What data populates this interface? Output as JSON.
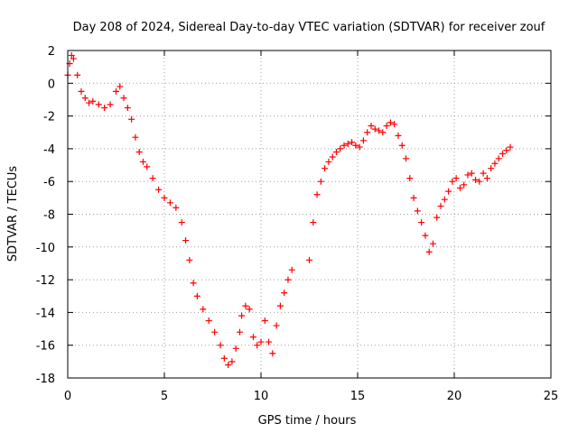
{
  "chart_data": {
    "type": "scatter",
    "title": "Day 208 of 2024, Sidereal Day-to-day VTEC variation (SDTVAR) for receiver zouf",
    "xlabel": "GPS time / hours",
    "ylabel": "SDTVAR / TECUs",
    "xlim": [
      0,
      25
    ],
    "ylim": [
      -18,
      2
    ],
    "xticks": [
      0,
      5,
      10,
      15,
      20,
      25
    ],
    "yticks": [
      2,
      0,
      -2,
      -4,
      -6,
      -8,
      -10,
      -12,
      -14,
      -16,
      -18
    ],
    "grid": true,
    "marker": "+",
    "color": "#ff0000",
    "series": [
      {
        "name": "SDTVAR",
        "x": [
          0.0,
          0.1,
          0.2,
          0.3,
          0.5,
          0.7,
          0.9,
          1.1,
          1.3,
          1.6,
          1.9,
          2.2,
          2.5,
          2.7,
          2.9,
          3.1,
          3.3,
          3.5,
          3.7,
          3.9,
          4.1,
          4.4,
          4.7,
          5.0,
          5.3,
          5.6,
          5.9,
          6.1,
          6.3,
          6.5,
          6.7,
          7.0,
          7.3,
          7.6,
          7.9,
          8.1,
          8.3,
          8.5,
          8.7,
          8.9,
          9.0,
          9.2,
          9.4,
          9.6,
          9.8,
          10.0,
          10.2,
          10.4,
          10.6,
          10.8,
          11.0,
          11.2,
          11.4,
          11.6,
          12.5,
          12.7,
          12.9,
          13.1,
          13.3,
          13.5,
          13.7,
          13.9,
          14.1,
          14.3,
          14.5,
          14.7,
          14.9,
          15.1,
          15.3,
          15.5,
          15.7,
          15.9,
          16.1,
          16.3,
          16.5,
          16.7,
          16.9,
          17.1,
          17.3,
          17.5,
          17.7,
          17.9,
          18.1,
          18.3,
          18.5,
          18.7,
          18.9,
          19.1,
          19.3,
          19.5,
          19.7,
          19.9,
          20.1,
          20.3,
          20.5,
          20.7,
          20.9,
          21.1,
          21.3,
          21.5,
          21.7,
          21.9,
          22.1,
          22.3,
          22.5,
          22.7,
          22.9
        ],
        "y": [
          0.5,
          1.2,
          1.7,
          1.5,
          0.5,
          -0.5,
          -0.9,
          -1.2,
          -1.1,
          -1.3,
          -1.5,
          -1.3,
          -0.5,
          -0.2,
          -0.9,
          -1.5,
          -2.2,
          -3.3,
          -4.2,
          -4.8,
          -5.1,
          -5.8,
          -6.5,
          -7.0,
          -7.3,
          -7.6,
          -8.5,
          -9.6,
          -10.8,
          -12.2,
          -13.0,
          -13.8,
          -14.5,
          -15.2,
          -16.0,
          -16.8,
          -17.2,
          -17.0,
          -16.2,
          -15.2,
          -14.2,
          -13.6,
          -13.8,
          -15.5,
          -16.0,
          -15.8,
          -14.5,
          -15.8,
          -16.5,
          -14.8,
          -13.6,
          -12.8,
          -12.0,
          -11.4,
          -10.8,
          -8.5,
          -6.8,
          -6.0,
          -5.2,
          -4.8,
          -4.5,
          -4.2,
          -4.0,
          -3.8,
          -3.7,
          -3.6,
          -3.8,
          -3.9,
          -3.5,
          -3.0,
          -2.6,
          -2.8,
          -2.9,
          -3.0,
          -2.6,
          -2.4,
          -2.5,
          -3.2,
          -3.8,
          -4.6,
          -5.8,
          -7.0,
          -7.8,
          -8.5,
          -9.3,
          -10.3,
          -9.8,
          -8.2,
          -7.5,
          -7.1,
          -6.6,
          -6.0,
          -5.8,
          -6.4,
          -6.2,
          -5.6,
          -5.5,
          -5.9,
          -6.0,
          -5.5,
          -5.8,
          -5.2,
          -4.9,
          -4.6,
          -4.3,
          -4.1,
          -3.9
        ]
      }
    ]
  }
}
